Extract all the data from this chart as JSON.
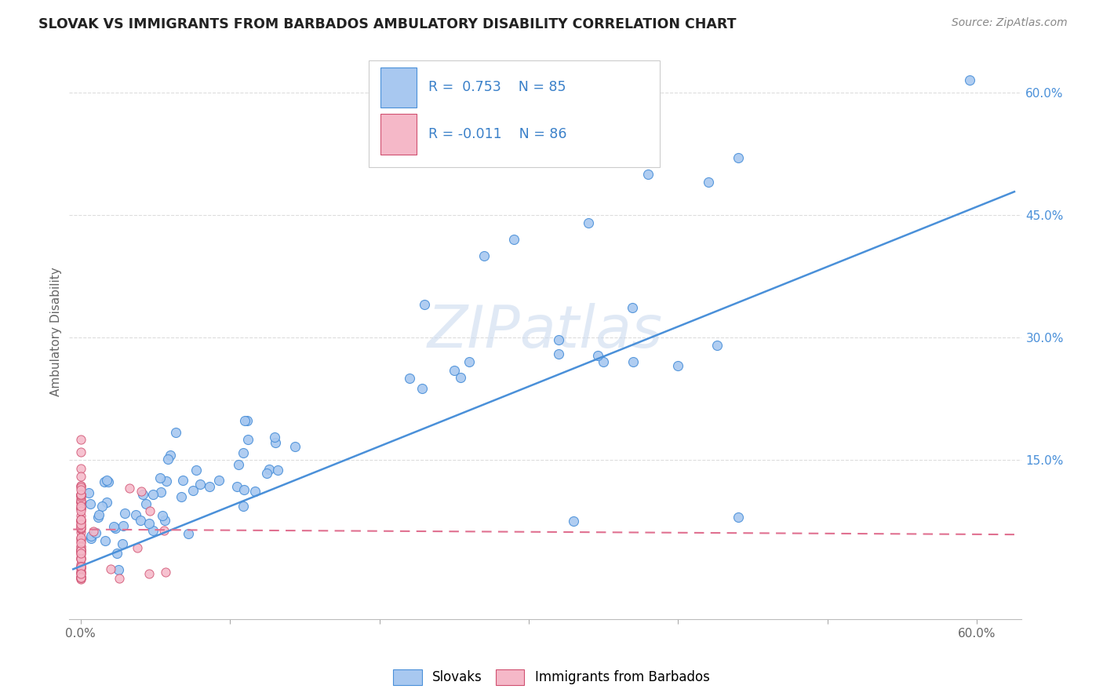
{
  "title": "SLOVAK VS IMMIGRANTS FROM BARBADOS AMBULATORY DISABILITY CORRELATION CHART",
  "source": "Source: ZipAtlas.com",
  "ylabel": "Ambulatory Disability",
  "color_slovak": "#A8C8F0",
  "color_barbados": "#F5B8C8",
  "color_line_slovak": "#4A90D9",
  "color_line_barbados": "#E07090",
  "watermark_color": "#C8D8EE",
  "background_color": "#FFFFFF",
  "legend_R1": "R =  0.753",
  "legend_N1": "N = 85",
  "legend_R2": "R = -0.011",
  "legend_N2": "N = 86"
}
